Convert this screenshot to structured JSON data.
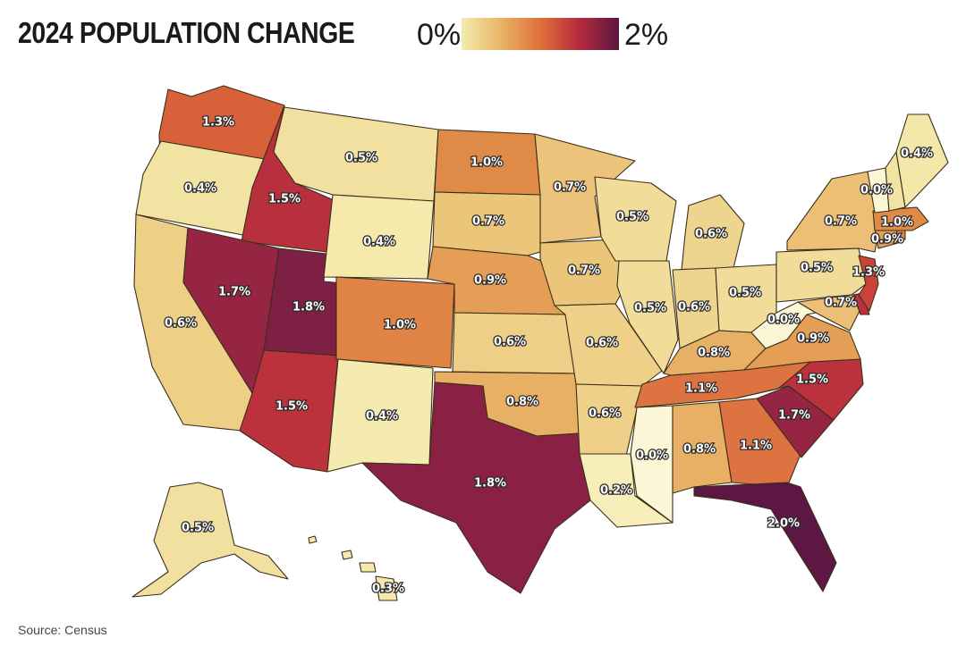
{
  "title": "2024 POPULATION CHANGE",
  "legend": {
    "min_label": "0%",
    "max_label": "2%",
    "colors": [
      "#f3ecae",
      "#e9b466",
      "#e0703a",
      "#b52a3d",
      "#5a1740"
    ]
  },
  "source": "Source: Census",
  "states": [
    {
      "id": "WA",
      "value": "1.3%",
      "color": "#d8613a"
    },
    {
      "id": "OR",
      "value": "0.4%",
      "color": "#f1e3a1"
    },
    {
      "id": "CA",
      "value": "0.6%",
      "color": "#edcf85"
    },
    {
      "id": "ID",
      "value": "1.5%",
      "color": "#b8303e"
    },
    {
      "id": "NV",
      "value": "1.7%",
      "color": "#952542"
    },
    {
      "id": "UT",
      "value": "1.8%",
      "color": "#7e1f44"
    },
    {
      "id": "AZ",
      "value": "1.5%",
      "color": "#bb323d"
    },
    {
      "id": "MT",
      "value": "0.5%",
      "color": "#f1e0a0"
    },
    {
      "id": "WY",
      "value": "0.4%",
      "color": "#f5e9ac"
    },
    {
      "id": "CO",
      "value": "1.0%",
      "color": "#e08445"
    },
    {
      "id": "NM",
      "value": "0.4%",
      "color": "#f5ebb0"
    },
    {
      "id": "ND",
      "value": "1.0%",
      "color": "#e08a48"
    },
    {
      "id": "SD",
      "value": "0.7%",
      "color": "#ebc57a"
    },
    {
      "id": "NE",
      "value": "0.9%",
      "color": "#e59e55"
    },
    {
      "id": "KS",
      "value": "0.6%",
      "color": "#eecf88"
    },
    {
      "id": "OK",
      "value": "0.8%",
      "color": "#e8b064"
    },
    {
      "id": "TX",
      "value": "1.8%",
      "color": "#8a2145"
    },
    {
      "id": "MN",
      "value": "0.7%",
      "color": "#ebc37a"
    },
    {
      "id": "IA",
      "value": "0.7%",
      "color": "#ebc57a"
    },
    {
      "id": "MO",
      "value": "0.6%",
      "color": "#eed088"
    },
    {
      "id": "AR",
      "value": "0.6%",
      "color": "#eed088"
    },
    {
      "id": "LA",
      "value": "0.2%",
      "color": "#f7eeb9"
    },
    {
      "id": "WI",
      "value": "0.5%",
      "color": "#f1dc9a"
    },
    {
      "id": "IL",
      "value": "0.5%",
      "color": "#f1dc9a"
    },
    {
      "id": "MI",
      "value": "0.6%",
      "color": "#eed58f"
    },
    {
      "id": "IN",
      "value": "0.6%",
      "color": "#eed58f"
    },
    {
      "id": "OH",
      "value": "0.5%",
      "color": "#f1dc9a"
    },
    {
      "id": "KY",
      "value": "0.8%",
      "color": "#e8b064"
    },
    {
      "id": "TN",
      "value": "1.1%",
      "color": "#dc7340"
    },
    {
      "id": "MS",
      "value": "0.0%",
      "color": "#fbf6d6"
    },
    {
      "id": "AL",
      "value": "0.8%",
      "color": "#e8b064"
    },
    {
      "id": "GA",
      "value": "1.1%",
      "color": "#dc7340"
    },
    {
      "id": "FL",
      "value": "2.0%",
      "color": "#5c1742"
    },
    {
      "id": "SC",
      "value": "1.7%",
      "color": "#952542"
    },
    {
      "id": "NC",
      "value": "1.5%",
      "color": "#bb323d"
    },
    {
      "id": "VA",
      "value": "0.9%",
      "color": "#e59e55"
    },
    {
      "id": "WV",
      "value": "0.0%",
      "color": "#fbf6d6"
    },
    {
      "id": "PA",
      "value": "0.5%",
      "color": "#f1dc9a"
    },
    {
      "id": "NY",
      "value": "0.7%",
      "color": "#ebbf76"
    },
    {
      "id": "MD",
      "value": "0.7%",
      "color": "#ebbf76"
    },
    {
      "id": "DE",
      "value": "",
      "color": "#b8303e"
    },
    {
      "id": "NJ",
      "value": "1.3%",
      "color": "#c9433c"
    },
    {
      "id": "CT",
      "value": "0.9%",
      "color": "#e59e55"
    },
    {
      "id": "RI",
      "value": "",
      "color": "#e08a48"
    },
    {
      "id": "MA",
      "value": "1.0%",
      "color": "#e08a48"
    },
    {
      "id": "VT",
      "value": "0.0%",
      "color": "#fbf6d6"
    },
    {
      "id": "NH",
      "value": "",
      "color": "#f1e3a1"
    },
    {
      "id": "ME",
      "value": "0.4%",
      "color": "#f3e7aa"
    },
    {
      "id": "AK",
      "value": "0.5%",
      "color": "#f1e0a0"
    },
    {
      "id": "HI",
      "value": "0.3%",
      "color": "#f5e9ac"
    }
  ]
}
